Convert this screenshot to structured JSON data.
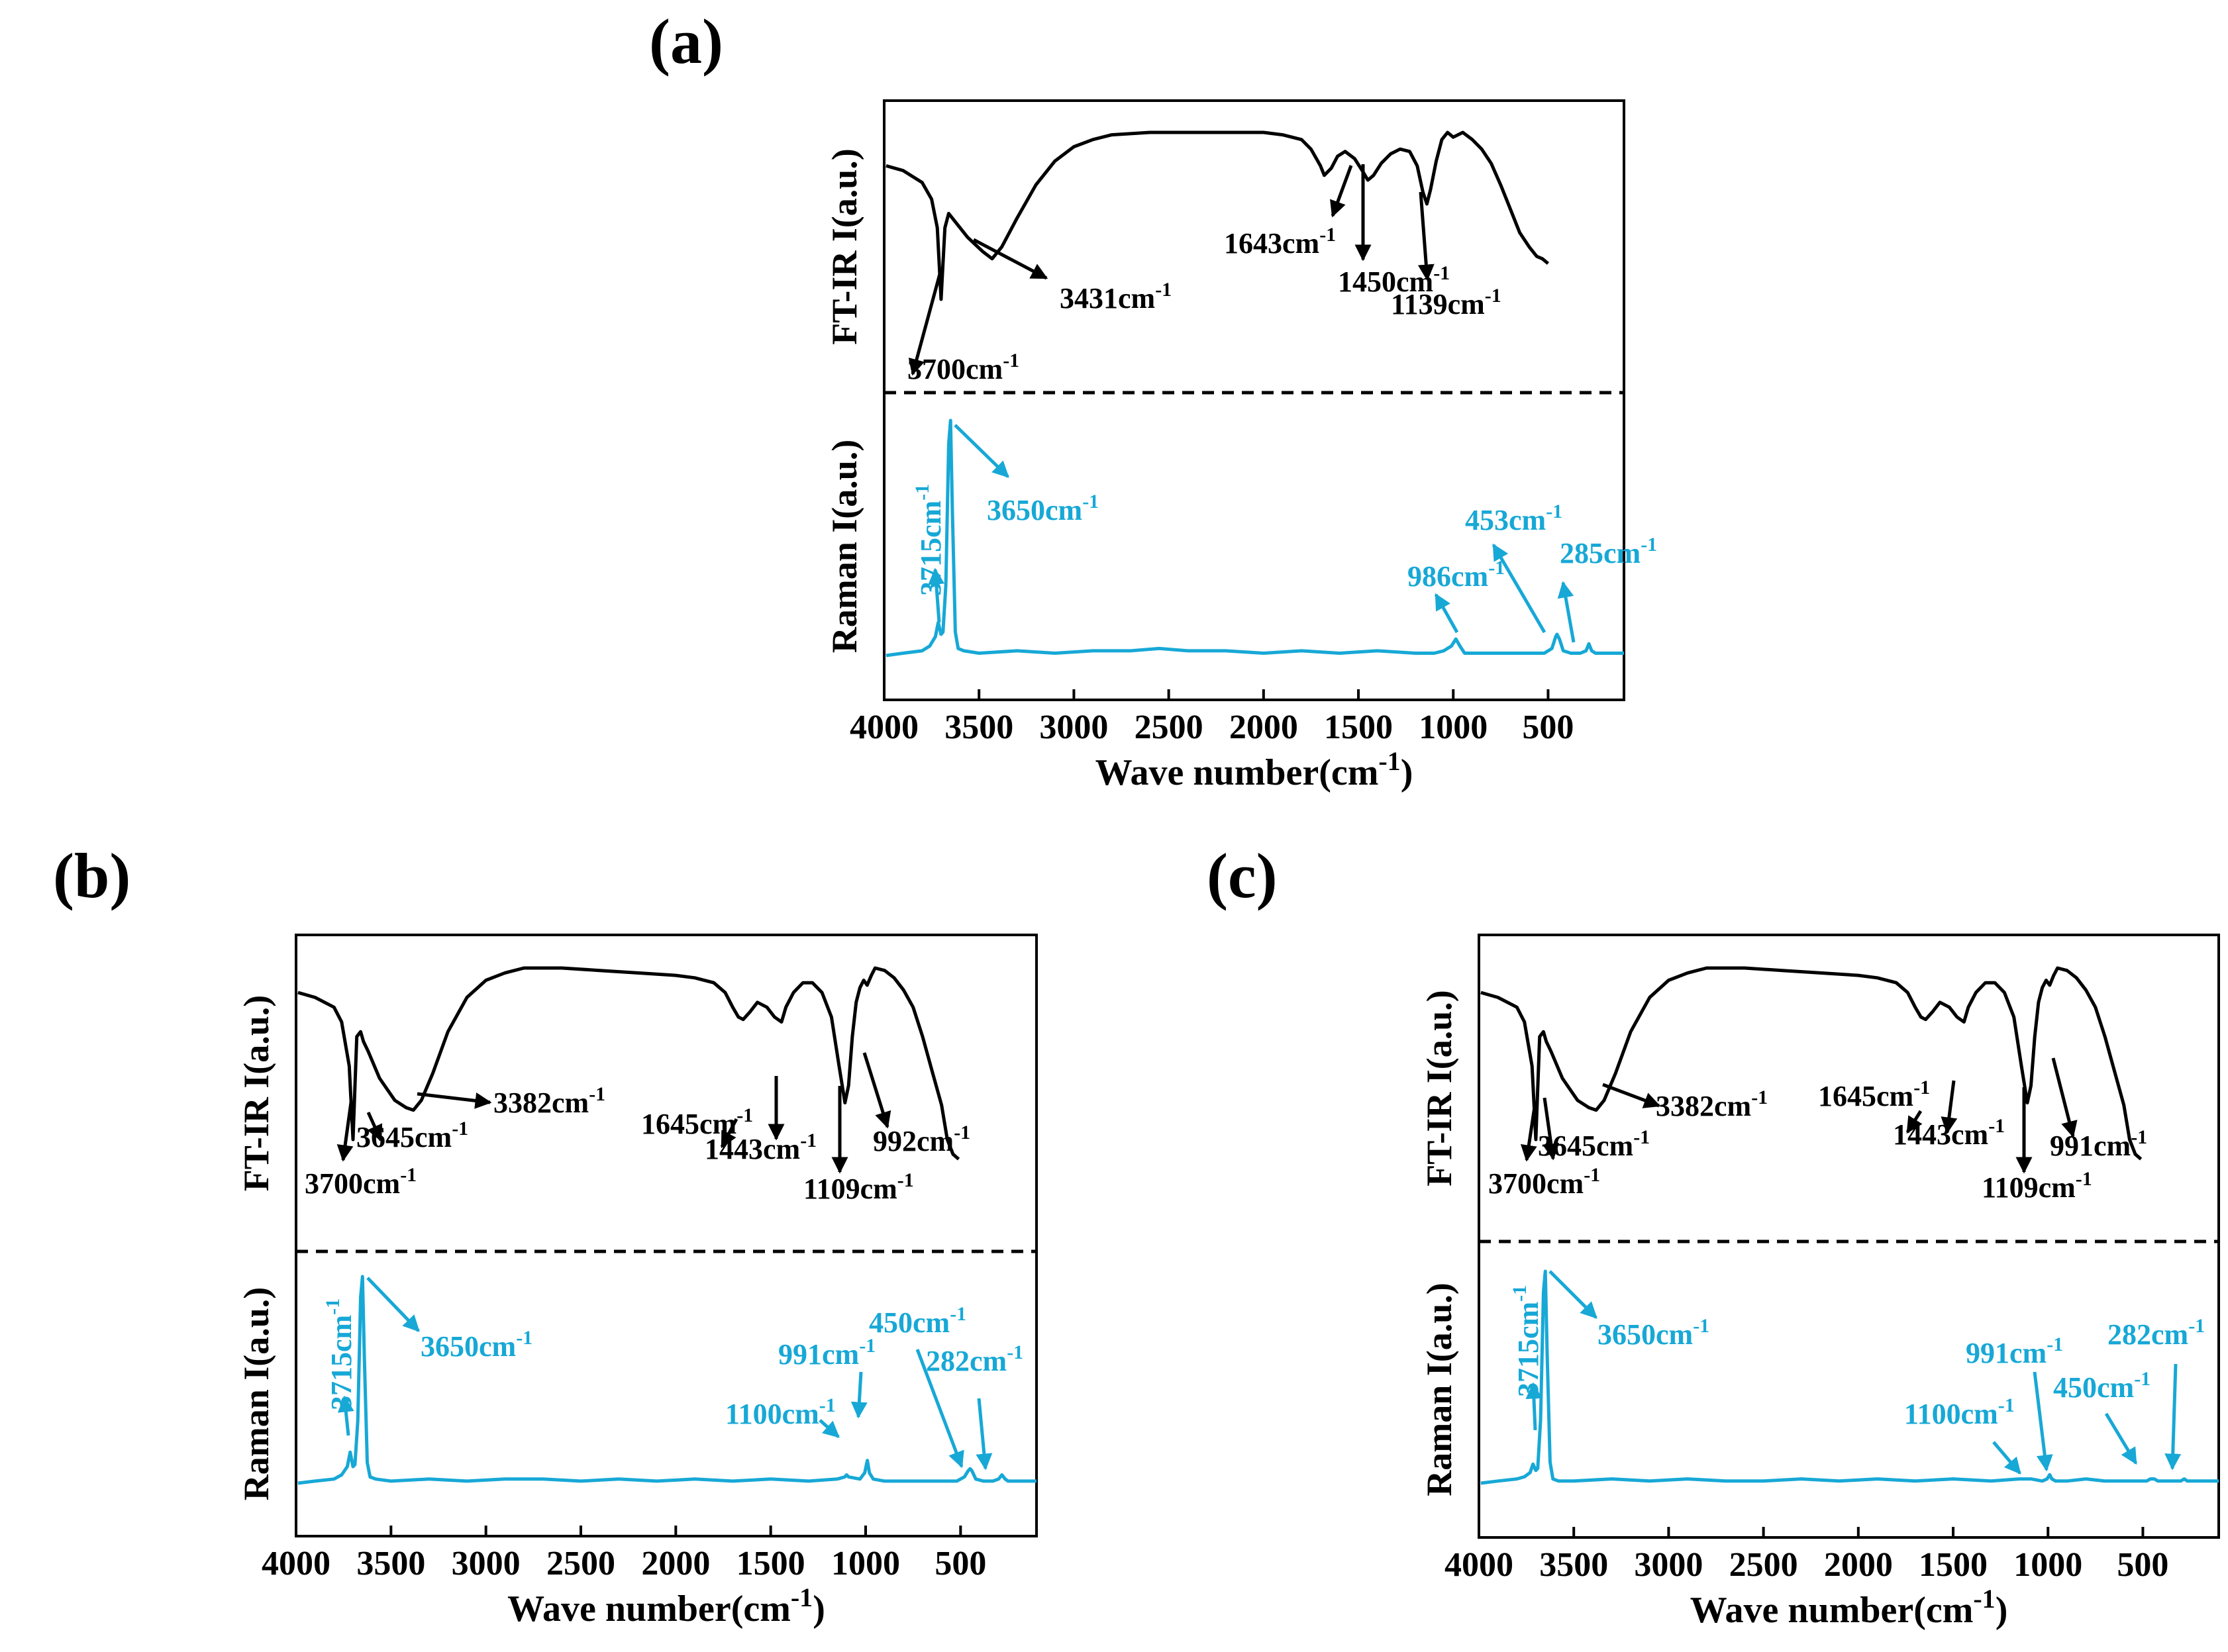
{
  "colors": {
    "ir": "#000000",
    "raman": "#17a8d6",
    "divider": "#000000"
  },
  "chart_data": [
    {
      "type": "line",
      "panel": "(a)",
      "xlabel": "Wave number(cm",
      "xlabel_sup": "-1",
      "xlabel_close": ")",
      "xlim": [
        4000,
        100
      ],
      "xticks": [
        4000,
        3500,
        3000,
        2500,
        2000,
        1500,
        1000,
        500
      ],
      "ylabel_top": "FT-IR I(a.u.)",
      "ylabel_bottom": "Raman I(a.u.)",
      "series": [
        {
          "name": "FT-IR",
          "x": [
            3990,
            3900,
            3800,
            3750,
            3720,
            3700,
            3680,
            3660,
            3620,
            3560,
            3480,
            3431,
            3380,
            3300,
            3200,
            3100,
            3000,
            2900,
            2800,
            2600,
            2400,
            2200,
            2000,
            1900,
            1800,
            1750,
            1700,
            1680,
            1643,
            1610,
            1570,
            1520,
            1480,
            1450,
            1420,
            1380,
            1330,
            1280,
            1230,
            1190,
            1160,
            1139,
            1120,
            1090,
            1060,
            1030,
            1000,
            950,
            900,
            850,
            800,
            750,
            700,
            650,
            600,
            560,
            530,
            500
          ],
          "y": [
            0.86,
            0.84,
            0.79,
            0.72,
            0.6,
            0.3,
            0.6,
            0.66,
            0.62,
            0.56,
            0.5,
            0.47,
            0.52,
            0.64,
            0.78,
            0.88,
            0.94,
            0.97,
            0.99,
            1.0,
            1.0,
            1.0,
            1.0,
            0.99,
            0.97,
            0.93,
            0.86,
            0.82,
            0.85,
            0.9,
            0.92,
            0.89,
            0.84,
            0.8,
            0.82,
            0.87,
            0.91,
            0.93,
            0.92,
            0.86,
            0.75,
            0.7,
            0.76,
            0.88,
            0.97,
            1.0,
            0.98,
            1.0,
            0.97,
            0.93,
            0.87,
            0.78,
            0.68,
            0.58,
            0.52,
            0.48,
            0.47,
            0.45
          ]
        },
        {
          "name": "Raman",
          "x": [
            3990,
            3900,
            3800,
            3760,
            3730,
            3715,
            3700,
            3690,
            3675,
            3660,
            3650,
            3640,
            3625,
            3610,
            3580,
            3500,
            3300,
            3100,
            2900,
            2700,
            2550,
            2400,
            2200,
            2000,
            1800,
            1600,
            1400,
            1200,
            1100,
            1050,
            1010,
            986,
            965,
            940,
            900,
            800,
            700,
            600,
            520,
            480,
            460,
            453,
            440,
            420,
            380,
            330,
            300,
            285,
            270,
            250,
            200,
            150,
            100
          ],
          "y": [
            0.0,
            0.01,
            0.02,
            0.04,
            0.08,
            0.14,
            0.09,
            0.1,
            0.3,
            0.9,
            1.0,
            0.6,
            0.1,
            0.03,
            0.02,
            0.01,
            0.02,
            0.01,
            0.02,
            0.02,
            0.03,
            0.02,
            0.02,
            0.01,
            0.02,
            0.01,
            0.02,
            0.01,
            0.01,
            0.02,
            0.04,
            0.07,
            0.04,
            0.01,
            0.01,
            0.01,
            0.01,
            0.01,
            0.01,
            0.03,
            0.08,
            0.09,
            0.07,
            0.02,
            0.01,
            0.01,
            0.02,
            0.05,
            0.02,
            0.01,
            0.01,
            0.01,
            0.01
          ]
        }
      ],
      "annotations": [
        {
          "text": "3700cm",
          "sup": "-1",
          "series": "FT-IR"
        },
        {
          "text": "3431cm",
          "sup": "-1",
          "series": "FT-IR"
        },
        {
          "text": "1643cm",
          "sup": "-1",
          "series": "FT-IR"
        },
        {
          "text": "1450cm",
          "sup": "-1",
          "series": "FT-IR"
        },
        {
          "text": "1139cm",
          "sup": "-1",
          "series": "FT-IR"
        },
        {
          "text": "3715cm",
          "sup": "-1",
          "series": "Raman"
        },
        {
          "text": "3650cm",
          "sup": "-1",
          "series": "Raman"
        },
        {
          "text": "986cm",
          "sup": "-1",
          "series": "Raman"
        },
        {
          "text": "453cm",
          "sup": "-1",
          "series": "Raman"
        },
        {
          "text": "285cm",
          "sup": "-1",
          "series": "Raman"
        }
      ]
    },
    {
      "type": "line",
      "panel": "(b)",
      "xlabel": "Wave number(cm",
      "xlabel_sup": "-1",
      "xlabel_close": ")",
      "xlim": [
        4000,
        100
      ],
      "xticks": [
        4000,
        3500,
        3000,
        2500,
        2000,
        1500,
        1000,
        500
      ],
      "ylabel_top": "FT-IR I(a.u.)",
      "ylabel_bottom": "Raman I(a.u.)",
      "series": [
        {
          "name": "FT-IR",
          "x": [
            3990,
            3900,
            3800,
            3760,
            3720,
            3700,
            3680,
            3660,
            3645,
            3620,
            3560,
            3480,
            3420,
            3382,
            3340,
            3280,
            3200,
            3100,
            3000,
            2900,
            2800,
            2600,
            2400,
            2200,
            2000,
            1900,
            1800,
            1740,
            1700,
            1670,
            1645,
            1610,
            1570,
            1520,
            1480,
            1443,
            1420,
            1380,
            1330,
            1280,
            1230,
            1180,
            1140,
            1109,
            1090,
            1070,
            1050,
            1030,
            1010,
            992,
            970,
            950,
            900,
            850,
            800,
            750,
            700,
            650,
            600,
            570,
            540,
            510
          ],
          "y": [
            0.9,
            0.88,
            0.84,
            0.78,
            0.6,
            0.3,
            0.72,
            0.74,
            0.7,
            0.66,
            0.55,
            0.46,
            0.43,
            0.42,
            0.46,
            0.57,
            0.74,
            0.88,
            0.95,
            0.98,
            1.0,
            1.0,
            0.99,
            0.98,
            0.97,
            0.96,
            0.94,
            0.9,
            0.84,
            0.8,
            0.79,
            0.82,
            0.86,
            0.84,
            0.8,
            0.78,
            0.84,
            0.9,
            0.94,
            0.94,
            0.9,
            0.8,
            0.6,
            0.45,
            0.52,
            0.72,
            0.86,
            0.92,
            0.95,
            0.93,
            0.97,
            1.0,
            0.99,
            0.96,
            0.91,
            0.84,
            0.72,
            0.58,
            0.44,
            0.3,
            0.24,
            0.22
          ]
        },
        {
          "name": "Raman",
          "x": [
            3990,
            3900,
            3800,
            3760,
            3730,
            3715,
            3700,
            3690,
            3675,
            3660,
            3650,
            3640,
            3625,
            3610,
            3580,
            3500,
            3300,
            3100,
            2900,
            2700,
            2500,
            2300,
            2100,
            1900,
            1700,
            1500,
            1300,
            1150,
            1110,
            1100,
            1090,
            1030,
            1005,
            991,
            980,
            960,
            900,
            800,
            700,
            600,
            520,
            480,
            460,
            450,
            440,
            420,
            380,
            330,
            300,
            282,
            265,
            250,
            200,
            150,
            100
          ],
          "y": [
            0.0,
            0.01,
            0.02,
            0.04,
            0.08,
            0.15,
            0.08,
            0.09,
            0.3,
            0.9,
            1.0,
            0.6,
            0.1,
            0.03,
            0.02,
            0.01,
            0.02,
            0.01,
            0.02,
            0.02,
            0.01,
            0.02,
            0.01,
            0.02,
            0.01,
            0.02,
            0.01,
            0.02,
            0.03,
            0.04,
            0.03,
            0.02,
            0.05,
            0.11,
            0.05,
            0.02,
            0.01,
            0.01,
            0.01,
            0.01,
            0.01,
            0.03,
            0.06,
            0.07,
            0.06,
            0.02,
            0.01,
            0.01,
            0.02,
            0.04,
            0.02,
            0.01,
            0.01,
            0.01,
            0.01
          ]
        }
      ],
      "annotations": [
        {
          "text": "3700cm",
          "sup": "-1",
          "series": "FT-IR"
        },
        {
          "text": "3645cm",
          "sup": "-1",
          "series": "FT-IR"
        },
        {
          "text": "3382cm",
          "sup": "-1",
          "series": "FT-IR"
        },
        {
          "text": "1645cm",
          "sup": "-1",
          "series": "FT-IR"
        },
        {
          "text": "1443cm",
          "sup": "-1",
          "series": "FT-IR"
        },
        {
          "text": "1109cm",
          "sup": "-1",
          "series": "FT-IR"
        },
        {
          "text": "992cm",
          "sup": "-1",
          "series": "FT-IR"
        },
        {
          "text": "3715cm",
          "sup": "-1",
          "series": "Raman"
        },
        {
          "text": "3650cm",
          "sup": "-1",
          "series": "Raman"
        },
        {
          "text": "1100cm",
          "sup": "-1",
          "series": "Raman"
        },
        {
          "text": "991cm",
          "sup": "-1",
          "series": "Raman"
        },
        {
          "text": "450cm",
          "sup": "-1",
          "series": "Raman"
        },
        {
          "text": "282cm",
          "sup": "-1",
          "series": "Raman"
        }
      ]
    },
    {
      "type": "line",
      "panel": "(c)",
      "xlabel": "Wave number(cm",
      "xlabel_sup": "-1",
      "xlabel_close": ")",
      "xlim": [
        4000,
        100
      ],
      "xticks": [
        4000,
        3500,
        3000,
        2500,
        2000,
        1500,
        1000,
        500
      ],
      "ylabel_top": "FT-IR I(a.u.)",
      "ylabel_bottom": "Raman I(a.u.)",
      "series": [
        {
          "name": "FT-IR",
          "x": [
            3990,
            3900,
            3800,
            3760,
            3720,
            3700,
            3680,
            3660,
            3645,
            3620,
            3560,
            3480,
            3420,
            3382,
            3340,
            3280,
            3200,
            3100,
            3000,
            2900,
            2800,
            2600,
            2400,
            2200,
            2000,
            1900,
            1800,
            1740,
            1700,
            1670,
            1645,
            1610,
            1570,
            1520,
            1480,
            1443,
            1420,
            1380,
            1330,
            1280,
            1230,
            1180,
            1140,
            1109,
            1090,
            1070,
            1050,
            1030,
            1010,
            991,
            970,
            950,
            900,
            850,
            800,
            750,
            700,
            650,
            600,
            570,
            540,
            510
          ],
          "y": [
            0.9,
            0.88,
            0.84,
            0.78,
            0.6,
            0.3,
            0.72,
            0.74,
            0.7,
            0.66,
            0.55,
            0.46,
            0.43,
            0.42,
            0.46,
            0.57,
            0.74,
            0.88,
            0.95,
            0.98,
            1.0,
            1.0,
            0.99,
            0.98,
            0.97,
            0.96,
            0.94,
            0.9,
            0.84,
            0.8,
            0.79,
            0.82,
            0.86,
            0.84,
            0.8,
            0.78,
            0.84,
            0.9,
            0.94,
            0.94,
            0.9,
            0.8,
            0.6,
            0.45,
            0.52,
            0.72,
            0.86,
            0.92,
            0.95,
            0.93,
            0.97,
            1.0,
            0.99,
            0.96,
            0.91,
            0.84,
            0.72,
            0.58,
            0.44,
            0.3,
            0.24,
            0.22
          ]
        },
        {
          "name": "Raman",
          "x": [
            3990,
            3900,
            3800,
            3760,
            3730,
            3715,
            3700,
            3690,
            3675,
            3660,
            3650,
            3640,
            3625,
            3610,
            3580,
            3500,
            3300,
            3100,
            2900,
            2700,
            2500,
            2300,
            2100,
            1900,
            1700,
            1500,
            1300,
            1150,
            1110,
            1100,
            1090,
            1030,
            1005,
            991,
            980,
            960,
            900,
            800,
            700,
            600,
            520,
            480,
            460,
            450,
            440,
            420,
            380,
            330,
            300,
            282,
            265,
            250,
            200,
            150,
            100
          ],
          "y": [
            0.0,
            0.01,
            0.02,
            0.03,
            0.05,
            0.09,
            0.06,
            0.07,
            0.3,
            0.9,
            1.0,
            0.6,
            0.1,
            0.02,
            0.01,
            0.01,
            0.02,
            0.01,
            0.02,
            0.01,
            0.01,
            0.02,
            0.01,
            0.02,
            0.01,
            0.02,
            0.01,
            0.02,
            0.02,
            0.02,
            0.02,
            0.01,
            0.02,
            0.04,
            0.02,
            0.01,
            0.01,
            0.02,
            0.01,
            0.01,
            0.01,
            0.01,
            0.02,
            0.02,
            0.02,
            0.01,
            0.01,
            0.01,
            0.01,
            0.02,
            0.01,
            0.01,
            0.01,
            0.01,
            0.01
          ]
        }
      ],
      "annotations": [
        {
          "text": "3700cm",
          "sup": "-1",
          "series": "FT-IR"
        },
        {
          "text": "3645cm",
          "sup": "-1",
          "series": "FT-IR"
        },
        {
          "text": "3382cm",
          "sup": "-1",
          "series": "FT-IR"
        },
        {
          "text": "1645cm",
          "sup": "-1",
          "series": "FT-IR"
        },
        {
          "text": "1443cm",
          "sup": "-1",
          "series": "FT-IR"
        },
        {
          "text": "1109cm",
          "sup": "-1",
          "series": "FT-IR"
        },
        {
          "text": "991cm",
          "sup": "-1",
          "series": "FT-IR"
        },
        {
          "text": "3715cm",
          "sup": "-1",
          "series": "Raman"
        },
        {
          "text": "3650cm",
          "sup": "-1",
          "series": "Raman"
        },
        {
          "text": "1100cm",
          "sup": "-1",
          "series": "Raman"
        },
        {
          "text": "991cm",
          "sup": "-1",
          "series": "Raman"
        },
        {
          "text": "450cm",
          "sup": "-1",
          "series": "Raman"
        },
        {
          "text": "282cm",
          "sup": "-1",
          "series": "Raman"
        }
      ]
    }
  ]
}
